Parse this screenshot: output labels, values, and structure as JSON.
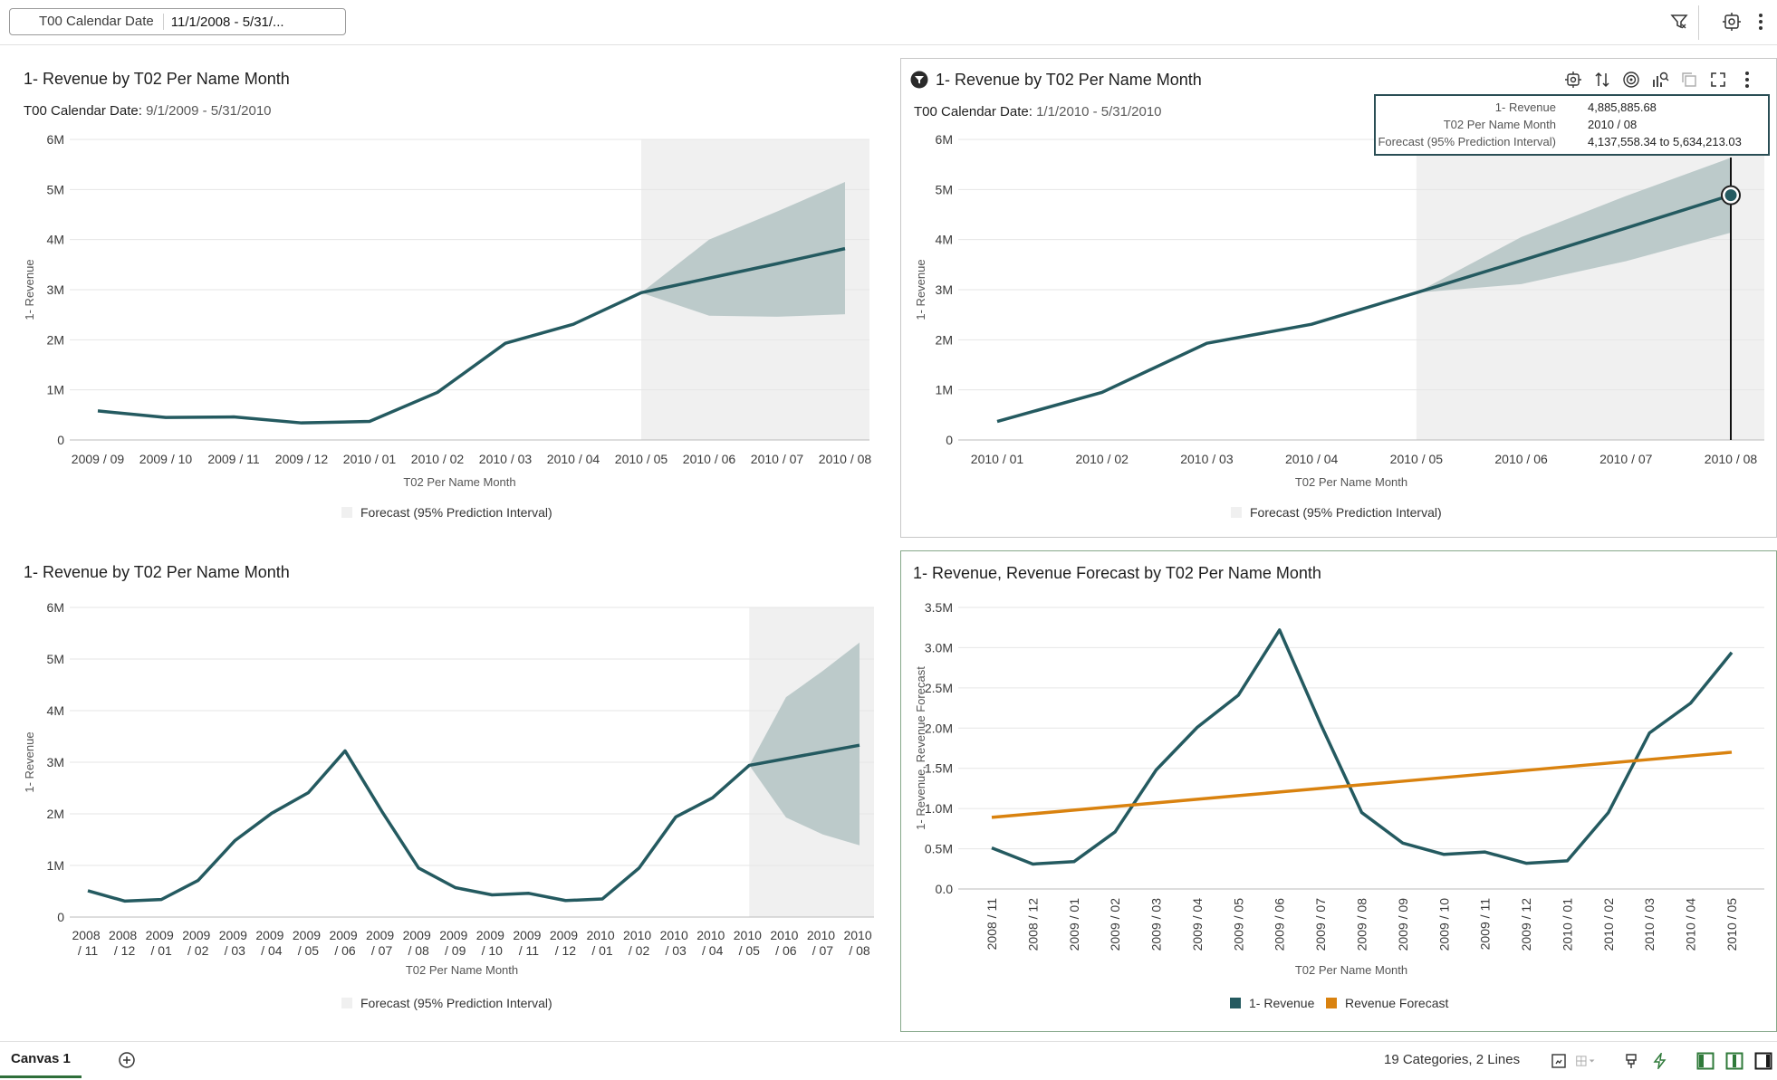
{
  "filter_bar": {
    "label": "T00 Calendar Date",
    "value": "11/1/2008 - 5/31/..."
  },
  "icons": {
    "filter": "filter-icon",
    "properties": "properties-icon",
    "more": "more-vertical-icon"
  },
  "colors": {
    "revenue": "#245a60",
    "forecast_band": "#bccaca",
    "forecast_region": "#f0f0f0",
    "revenue_forecast": "#d9820f",
    "active_border": "#86a88a"
  },
  "panels": [
    {
      "title": "1- Revenue by T02 Per Name Month",
      "filter_label": "T00 Calendar Date:",
      "filter_value": "9/1/2009 - 5/31/2010",
      "legend": "Forecast (95% Prediction Interval)"
    },
    {
      "title": "1- Revenue by T02 Per Name Month",
      "filter_label": "T00 Calendar Date:",
      "filter_value": "1/1/2010 - 5/31/2010",
      "legend": "Forecast (95% Prediction Interval)"
    },
    {
      "title": "1- Revenue by T02 Per Name Month",
      "legend": "Forecast (95% Prediction Interval)"
    },
    {
      "title": "1- Revenue, Revenue Forecast by T02 Per Name Month",
      "legend": [
        "1- Revenue",
        "Revenue Forecast"
      ]
    }
  ],
  "tooltip": {
    "rows": [
      {
        "label": "1- Revenue",
        "value": "4,885,885.68"
      },
      {
        "label": "T02 Per Name Month",
        "value": "2010 / 08"
      },
      {
        "label": "Forecast (95% Prediction Interval)",
        "value": "4,137,558.34 to 5,634,213.03"
      }
    ]
  },
  "chart_data": [
    {
      "type": "line",
      "xlabel": "T02 Per Name Month",
      "ylabel": "1- Revenue",
      "ylim": [
        0,
        6000000
      ],
      "yticks": [
        "0",
        "1M",
        "2M",
        "3M",
        "4M",
        "5M",
        "6M"
      ],
      "categories": [
        "2009 / 09",
        "2009 / 10",
        "2009 / 11",
        "2009 / 12",
        "2010 / 01",
        "2010 / 02",
        "2010 / 03",
        "2010 / 04",
        "2010 / 05",
        "2010 / 06",
        "2010 / 07",
        "2010 / 08"
      ],
      "series": [
        {
          "values": [
            580000,
            450000,
            460000,
            340000,
            370000,
            950000,
            1930000,
            2310000,
            2940000,
            3230000,
            3520000,
            3820000
          ]
        }
      ],
      "forecast_start_index": 8,
      "forecast_lower": [
        2940000,
        2480000,
        2460000,
        2510000
      ],
      "forecast_upper": [
        2940000,
        4000000,
        4560000,
        5150000
      ],
      "legend": "bottom",
      "grid": true
    },
    {
      "type": "line",
      "xlabel": "T02 Per Name Month",
      "ylabel": "1- Revenue",
      "ylim": [
        0,
        6000000
      ],
      "yticks": [
        "0",
        "1M",
        "2M",
        "3M",
        "4M",
        "5M",
        "6M"
      ],
      "categories": [
        "2010 / 01",
        "2010 / 02",
        "2010 / 03",
        "2010 / 04",
        "2010 / 05",
        "2010 / 06",
        "2010 / 07",
        "2010 / 08"
      ],
      "series": [
        {
          "values": [
            370000,
            950000,
            1930000,
            2310000,
            2940000,
            3580000,
            4230000,
            4885885.68
          ]
        }
      ],
      "forecast_start_index": 4,
      "forecast_lower": [
        2940000,
        3110000,
        3570000,
        4137558.34
      ],
      "forecast_upper": [
        2940000,
        4050000,
        4870000,
        5634213.03
      ],
      "highlight_index": 7,
      "legend": "bottom",
      "grid": true
    },
    {
      "type": "line",
      "xlabel": "T02 Per Name Month",
      "ylabel": "1- Revenue",
      "ylim": [
        0,
        6000000
      ],
      "yticks": [
        "0",
        "1M",
        "2M",
        "3M",
        "4M",
        "5M",
        "6M"
      ],
      "categories": [
        "2008 / 11",
        "2008 / 12",
        "2009 / 01",
        "2009 / 02",
        "2009 / 03",
        "2009 / 04",
        "2009 / 05",
        "2009 / 06",
        "2009 / 07",
        "2009 / 08",
        "2009 / 09",
        "2009 / 10",
        "2009 / 11",
        "2009 / 12",
        "2010 / 01",
        "2010 / 02",
        "2010 / 03",
        "2010 / 04",
        "2010 / 05",
        "2010 / 06",
        "2010 / 07",
        "2010 / 08"
      ],
      "series": [
        {
          "values": [
            510000,
            310000,
            340000,
            710000,
            1480000,
            2010000,
            2410000,
            3220000,
            2050000,
            950000,
            570000,
            430000,
            460000,
            320000,
            350000,
            950000,
            1940000,
            2310000,
            2940000,
            3070000,
            3200000,
            3330000
          ]
        }
      ],
      "forecast_start_index": 18,
      "forecast_lower": [
        2940000,
        1930000,
        1600000,
        1390000
      ],
      "forecast_upper": [
        2940000,
        4260000,
        4770000,
        5320000
      ],
      "legend": "bottom",
      "grid": true
    },
    {
      "type": "line",
      "xlabel": "T02 Per Name Month",
      "ylabel": "1- Revenue, Revenue Forecast",
      "ylim": [
        0,
        3500000
      ],
      "yticks": [
        "0.0",
        "0.5M",
        "1.0M",
        "1.5M",
        "2.0M",
        "2.5M",
        "3.0M",
        "3.5M"
      ],
      "categories": [
        "2008 / 11",
        "2008 / 12",
        "2009 / 01",
        "2009 / 02",
        "2009 / 03",
        "2009 / 04",
        "2009 / 05",
        "2009 / 06",
        "2009 / 07",
        "2009 / 08",
        "2009 / 09",
        "2009 / 10",
        "2009 / 11",
        "2009 / 12",
        "2010 / 01",
        "2010 / 02",
        "2010 / 03",
        "2010 / 04",
        "2010 / 05"
      ],
      "series": [
        {
          "name": "1- Revenue",
          "values": [
            510000,
            310000,
            340000,
            710000,
            1480000,
            2010000,
            2410000,
            3220000,
            2050000,
            950000,
            570000,
            430000,
            460000,
            320000,
            350000,
            950000,
            1940000,
            2310000,
            2940000
          ]
        },
        {
          "name": "Revenue Forecast",
          "values": [
            890000,
            935000,
            980000,
            1025000,
            1070000,
            1115000,
            1160000,
            1205000,
            1250000,
            1295000,
            1340000,
            1385000,
            1430000,
            1475000,
            1520000,
            1565000,
            1610000,
            1655000,
            1700000
          ]
        }
      ],
      "legend": "bottom",
      "grid": true
    }
  ],
  "status": {
    "summary": "19 Categories, 2 Lines",
    "canvas_tab": "Canvas 1"
  }
}
